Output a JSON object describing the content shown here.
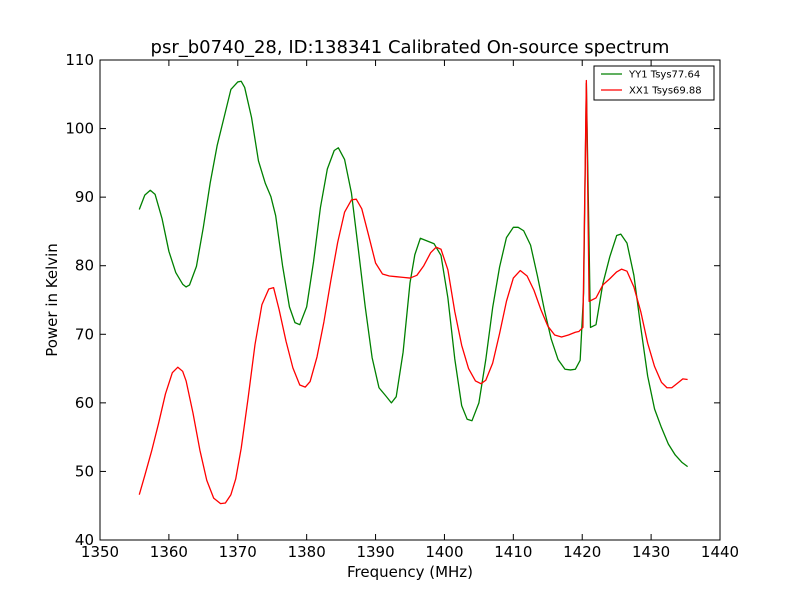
{
  "chart_data": {
    "type": "line",
    "title": "psr_b0740_28, ID:138341 Calibrated On-source spectrum",
    "xlabel": "Frequency (MHz)",
    "ylabel": "Power in Kelvin",
    "xlim": [
      1350,
      1440
    ],
    "ylim": [
      40,
      110
    ],
    "xticks": [
      1350,
      1360,
      1370,
      1380,
      1390,
      1400,
      1410,
      1420,
      1430,
      1440
    ],
    "yticks": [
      40,
      50,
      60,
      70,
      80,
      90,
      100,
      110
    ],
    "grid": false,
    "legend_position": "top-right",
    "series": [
      {
        "name": "YY1 Tsys77.64",
        "color": "#008000",
        "x": [
          1355.7,
          1356.5,
          1357.3,
          1358.0,
          1359.0,
          1360.0,
          1361.0,
          1362.0,
          1362.5,
          1363.0,
          1364.0,
          1365.0,
          1366.0,
          1367.0,
          1368.0,
          1369.0,
          1370.0,
          1370.5,
          1371.0,
          1372.0,
          1373.0,
          1374.0,
          1374.8,
          1375.5,
          1376.5,
          1377.5,
          1378.3,
          1379.0,
          1380.0,
          1381.0,
          1382.0,
          1383.0,
          1384.0,
          1384.6,
          1385.5,
          1386.5,
          1387.5,
          1388.5,
          1389.5,
          1390.5,
          1391.5,
          1392.3,
          1393.0,
          1394.0,
          1395.0,
          1395.7,
          1396.5,
          1397.5,
          1398.5,
          1399.5,
          1400.5,
          1401.5,
          1402.5,
          1403.3,
          1404.0,
          1405.0,
          1406.0,
          1407.0,
          1408.0,
          1409.0,
          1410.0,
          1410.7,
          1411.5,
          1412.5,
          1413.5,
          1414.5,
          1415.5,
          1416.5,
          1417.5,
          1418.3,
          1419.0,
          1419.7,
          1420.2,
          1420.6,
          1421.2,
          1422.0,
          1423.0,
          1424.0,
          1425.0,
          1425.6,
          1426.5,
          1427.5,
          1428.5,
          1429.5,
          1430.5,
          1431.5,
          1432.5,
          1433.5,
          1434.5,
          1435.3
        ],
        "values": [
          88.2,
          90.3,
          91.0,
          90.4,
          86.9,
          82.1,
          79.0,
          77.3,
          76.9,
          77.2,
          79.9,
          85.6,
          92.1,
          97.5,
          101.6,
          105.7,
          106.8,
          106.9,
          106.0,
          101.6,
          95.3,
          92.0,
          90.1,
          87.3,
          80.0,
          74.0,
          71.7,
          71.4,
          74.0,
          80.6,
          88.5,
          94.1,
          96.8,
          97.2,
          95.5,
          90.6,
          82.4,
          74.0,
          66.6,
          62.2,
          61.0,
          60.0,
          60.9,
          67.4,
          77.5,
          81.6,
          84.0,
          83.6,
          83.2,
          81.5,
          75.3,
          66.4,
          59.6,
          57.6,
          57.4,
          60.0,
          66.3,
          73.9,
          79.8,
          84.1,
          85.6,
          85.6,
          85.1,
          83.0,
          78.5,
          73.6,
          69.3,
          66.3,
          64.9,
          64.8,
          64.9,
          66.2,
          76.0,
          106.6,
          71.0,
          71.4,
          77.4,
          81.3,
          84.4,
          84.6,
          83.3,
          78.6,
          71.0,
          63.9,
          59.1,
          56.4,
          54.0,
          52.4,
          51.3,
          50.7
        ]
      },
      {
        "name": "XX1 Tsys69.88",
        "color": "#ff0000",
        "x": [
          1355.7,
          1356.5,
          1357.5,
          1358.5,
          1359.5,
          1360.5,
          1361.3,
          1362.0,
          1362.5,
          1363.5,
          1364.5,
          1365.5,
          1366.5,
          1367.5,
          1368.2,
          1369.0,
          1369.7,
          1370.5,
          1371.5,
          1372.5,
          1373.5,
          1374.5,
          1375.2,
          1376.0,
          1377.0,
          1378.0,
          1379.0,
          1379.8,
          1380.5,
          1381.5,
          1382.5,
          1383.5,
          1384.5,
          1385.5,
          1386.5,
          1387.2,
          1388.0,
          1389.0,
          1390.0,
          1391.0,
          1392.0,
          1393.0,
          1394.0,
          1395.0,
          1396.0,
          1397.0,
          1398.0,
          1398.8,
          1399.5,
          1400.5,
          1401.5,
          1402.5,
          1403.5,
          1404.5,
          1405.3,
          1406.0,
          1407.0,
          1408.0,
          1409.0,
          1410.0,
          1411.0,
          1412.0,
          1413.0,
          1414.0,
          1415.0,
          1416.0,
          1417.0,
          1418.0,
          1419.0,
          1419.5,
          1420.1,
          1420.6,
          1421.0,
          1422.0,
          1423.0,
          1424.0,
          1425.0,
          1425.7,
          1426.5,
          1427.5,
          1428.5,
          1429.5,
          1430.5,
          1431.5,
          1432.3,
          1433.0,
          1434.0,
          1434.6,
          1435.3
        ],
        "values": [
          46.6,
          49.4,
          53.0,
          57.0,
          61.3,
          64.4,
          65.2,
          64.6,
          63.2,
          58.5,
          53.1,
          48.7,
          46.1,
          45.3,
          45.4,
          46.6,
          48.9,
          53.4,
          60.7,
          68.5,
          74.3,
          76.6,
          76.8,
          73.6,
          69.0,
          65.1,
          62.6,
          62.3,
          63.1,
          66.7,
          71.8,
          77.8,
          83.4,
          87.8,
          89.6,
          89.7,
          88.3,
          84.4,
          80.4,
          78.8,
          78.5,
          78.4,
          78.3,
          78.2,
          78.6,
          80.0,
          81.9,
          82.7,
          82.4,
          79.4,
          73.3,
          68.4,
          65.0,
          63.2,
          62.8,
          63.3,
          65.8,
          70.1,
          74.8,
          78.2,
          79.3,
          78.5,
          76.4,
          73.6,
          71.2,
          69.9,
          69.6,
          69.9,
          70.3,
          70.4,
          71.0,
          107.0,
          74.8,
          75.3,
          77.2,
          78.1,
          79.1,
          79.5,
          79.2,
          76.9,
          73.3,
          68.7,
          65.3,
          63.0,
          62.2,
          62.2,
          63.0,
          63.5,
          63.4
        ]
      }
    ]
  }
}
